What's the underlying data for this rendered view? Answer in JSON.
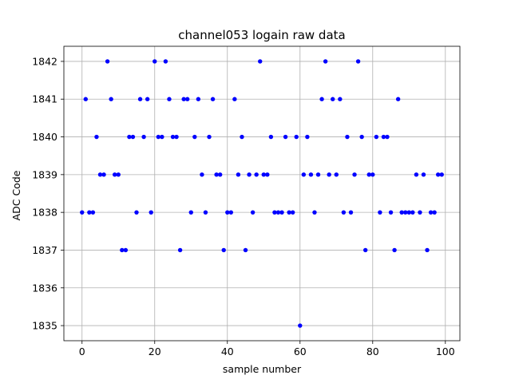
{
  "chart_data": {
    "type": "scatter",
    "title": "channel053 logain raw data",
    "xlabel": "sample number",
    "ylabel": "ADC Code",
    "xlim": [
      -5,
      104
    ],
    "ylim": [
      1834.6,
      1842.4
    ],
    "xticks": [
      0,
      20,
      40,
      60,
      80,
      100
    ],
    "yticks": [
      1835,
      1836,
      1837,
      1838,
      1839,
      1840,
      1841,
      1842
    ],
    "grid": true,
    "marker_color": "#0000ff",
    "x": [
      0,
      1,
      2,
      3,
      4,
      5,
      6,
      7,
      8,
      9,
      10,
      11,
      12,
      13,
      14,
      15,
      16,
      17,
      18,
      19,
      20,
      21,
      22,
      23,
      24,
      25,
      26,
      27,
      28,
      29,
      30,
      31,
      32,
      33,
      34,
      35,
      36,
      37,
      38,
      39,
      40,
      41,
      42,
      43,
      44,
      45,
      46,
      47,
      48,
      49,
      50,
      51,
      52,
      53,
      54,
      55,
      56,
      57,
      58,
      59,
      60,
      61,
      62,
      63,
      64,
      65,
      66,
      67,
      68,
      69,
      70,
      71,
      72,
      73,
      74,
      75,
      76,
      77,
      78,
      79,
      80,
      81,
      82,
      83,
      84,
      85,
      86,
      87,
      88,
      89,
      90,
      91,
      92,
      93,
      94,
      95,
      96,
      97,
      98,
      99
    ],
    "y": [
      1838,
      1841,
      1838,
      1838,
      1840,
      1839,
      1839,
      1842,
      1841,
      1839,
      1839,
      1837,
      1837,
      1840,
      1840,
      1838,
      1841,
      1840,
      1841,
      1838,
      1842,
      1840,
      1840,
      1842,
      1841,
      1840,
      1840,
      1837,
      1841,
      1841,
      1838,
      1840,
      1841,
      1839,
      1838,
      1840,
      1841,
      1839,
      1839,
      1837,
      1838,
      1838,
      1841,
      1839,
      1840,
      1837,
      1839,
      1838,
      1839,
      1842,
      1839,
      1839,
      1840,
      1838,
      1838,
      1838,
      1840,
      1838,
      1838,
      1840,
      1835,
      1839,
      1840,
      1839,
      1838,
      1839,
      1841,
      1842,
      1839,
      1841,
      1839,
      1841,
      1838,
      1840,
      1838,
      1839,
      1842,
      1840,
      1837,
      1839,
      1839,
      1840,
      1838,
      1840,
      1840,
      1838,
      1837,
      1841,
      1838,
      1838,
      1838,
      1838,
      1839,
      1838,
      1839,
      1837,
      1838,
      1838,
      1839,
      1839
    ]
  }
}
